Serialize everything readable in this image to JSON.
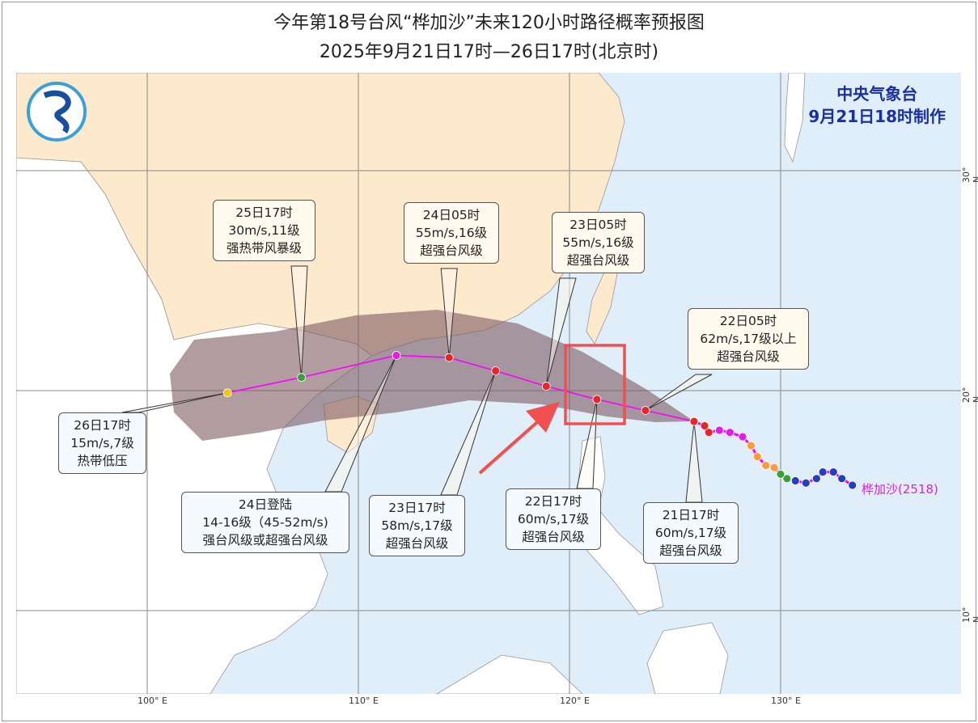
{
  "title": "今年第18号台风“桦加沙”未来120小时路径概率预报图",
  "subtitle": "2025年9月21日17时—26日17时(北京时)",
  "agency": {
    "name": "中央气象台",
    "issued": "9月21日18时制作"
  },
  "storm_label": "桦加沙(2518)",
  "axes": {
    "lon_labels": [
      "100° E",
      "110° E",
      "120° E",
      "130° E"
    ],
    "lat_labels": [
      "30° N",
      "20° N",
      "10° N"
    ]
  },
  "colors": {
    "land_china": "#fde9cc",
    "land_other": "#ffffff",
    "sea": "#dfeef9",
    "track": "#ff00ff",
    "cone": "#7d5a60",
    "highlight": "#f05050",
    "super_typhoon": "#e8262a",
    "severe_typhoon": "#e020e0",
    "severe_tropical_storm": "#3aa03a",
    "tropical_depression": "#f0c800",
    "past_typhoon": "#ff9a3a",
    "past_weak": "#2040c0"
  },
  "forecast": [
    {
      "time": "21日17时",
      "lines": [
        "21日17时",
        "60m/s,17级",
        "超强台风级"
      ],
      "lon": 125.9,
      "lat": 18.6,
      "color": "#e8262a"
    },
    {
      "time": "22日05时",
      "lines": [
        "22日05时",
        "62m/s,17级以上",
        "超强台风级"
      ],
      "lon": 123.6,
      "lat": 19.1,
      "color": "#e8262a"
    },
    {
      "time": "22日17时",
      "lines": [
        "22日17时",
        "60m/s,17级",
        "超强台风级"
      ],
      "lon": 121.3,
      "lat": 19.6,
      "color": "#e8262a"
    },
    {
      "time": "23日05时",
      "lines": [
        "23日05时",
        "55m/s,16级",
        "超强台风级"
      ],
      "lon": 118.9,
      "lat": 20.2,
      "color": "#e8262a"
    },
    {
      "time": "23日17时",
      "lines": [
        "23日17时",
        "58m/s,17级",
        "超强台风级"
      ],
      "lon": 116.5,
      "lat": 20.9,
      "color": "#e8262a"
    },
    {
      "time": "24日05时",
      "lines": [
        "24日05时",
        "55m/s,16级",
        "超强台风级"
      ],
      "lon": 114.3,
      "lat": 21.5,
      "color": "#e8262a"
    },
    {
      "time": "24日登陆",
      "lines": [
        "24日登陆",
        "14-16级（45-52m/s)",
        "强台风级或超强台风级"
      ],
      "lon": 111.8,
      "lat": 21.6,
      "color": "#e020e0"
    },
    {
      "time": "25日17时",
      "lines": [
        "25日17时",
        "30m/s,11级",
        "强热带风暴级"
      ],
      "lon": 107.3,
      "lat": 20.6,
      "color": "#3aa03a"
    },
    {
      "time": "26日17时",
      "lines": [
        "26日17时",
        "15m/s,7级",
        "热带低压"
      ],
      "lon": 103.8,
      "lat": 19.9,
      "color": "#f0c800"
    }
  ],
  "past_track": [
    {
      "lon": 133.4,
      "lat": 15.7,
      "color": "#2040c0"
    },
    {
      "lon": 132.9,
      "lat": 16.0,
      "color": "#2040c0"
    },
    {
      "lon": 132.5,
      "lat": 16.3,
      "color": "#2040c0"
    },
    {
      "lon": 132.0,
      "lat": 16.3,
      "color": "#2040c0"
    },
    {
      "lon": 131.7,
      "lat": 16.0,
      "color": "#2040c0"
    },
    {
      "lon": 131.2,
      "lat": 15.8,
      "color": "#2040c0"
    },
    {
      "lon": 130.7,
      "lat": 15.9,
      "color": "#2040c0"
    },
    {
      "lon": 130.3,
      "lat": 16.0,
      "color": "#3aa03a"
    },
    {
      "lon": 130.0,
      "lat": 16.2,
      "color": "#3aa03a"
    },
    {
      "lon": 129.7,
      "lat": 16.5,
      "color": "#ff9a3a"
    },
    {
      "lon": 129.3,
      "lat": 16.6,
      "color": "#ff9a3a"
    },
    {
      "lon": 128.9,
      "lat": 17.0,
      "color": "#ff9a3a"
    },
    {
      "lon": 128.6,
      "lat": 17.5,
      "color": "#ff9a3a"
    },
    {
      "lon": 128.2,
      "lat": 17.9,
      "color": "#e020e0"
    },
    {
      "lon": 127.6,
      "lat": 18.1,
      "color": "#e020e0"
    },
    {
      "lon": 127.1,
      "lat": 18.2,
      "color": "#e020e0"
    },
    {
      "lon": 126.6,
      "lat": 18.1,
      "color": "#e8262a"
    },
    {
      "lon": 126.4,
      "lat": 18.4,
      "color": "#e8262a"
    },
    {
      "lon": 125.9,
      "lat": 18.6,
      "color": "#e8262a"
    }
  ]
}
